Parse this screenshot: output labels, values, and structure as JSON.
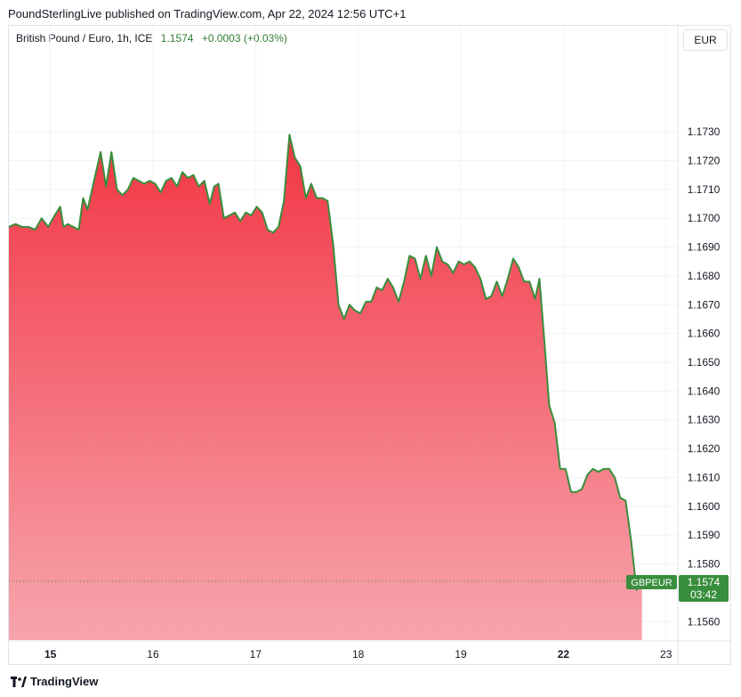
{
  "caption": "PoundSterlingLive published on TradingView.com, Apr 22, 2024 12:56 UTC+1",
  "legend": {
    "symbol": "British Pound / Euro, 1h, ICE",
    "last": "1.1574",
    "change": "+0.0003 (+0.03%)"
  },
  "currency_label": "EUR",
  "brand": "TradingView",
  "colors": {
    "line": "#388e3c",
    "fill_top": "#f23645",
    "fill_bottom": "#f7a5ad",
    "badge": "#388e3c",
    "grid": "#f0f3fa"
  },
  "chart_data": {
    "type": "area",
    "title": "British Pound / Euro, 1h, ICE",
    "series": [
      {
        "name": "GBPEUR",
        "points": [
          [
            0.0,
            1.1697
          ],
          [
            0.3,
            1.1698
          ],
          [
            0.6,
            1.1697
          ],
          [
            0.9,
            1.1697
          ],
          [
            1.2,
            1.1696
          ],
          [
            1.5,
            1.17
          ],
          [
            1.8,
            1.1697
          ],
          [
            2.1,
            1.1701
          ],
          [
            2.35,
            1.1704
          ],
          [
            2.5,
            1.1697
          ],
          [
            2.7,
            1.1698
          ],
          [
            2.95,
            1.1697
          ],
          [
            3.2,
            1.1696
          ],
          [
            3.4,
            1.1707
          ],
          [
            3.6,
            1.1703
          ],
          [
            3.9,
            1.1713
          ],
          [
            4.2,
            1.1723
          ],
          [
            4.45,
            1.1711
          ],
          [
            4.7,
            1.1723
          ],
          [
            4.95,
            1.171
          ],
          [
            5.2,
            1.1708
          ],
          [
            5.45,
            1.171
          ],
          [
            5.7,
            1.1714
          ],
          [
            5.95,
            1.1713
          ],
          [
            6.2,
            1.1712
          ],
          [
            6.45,
            1.1713
          ],
          [
            6.7,
            1.1712
          ],
          [
            6.95,
            1.1709
          ],
          [
            7.2,
            1.1713
          ],
          [
            7.45,
            1.1714
          ],
          [
            7.7,
            1.1711
          ],
          [
            7.95,
            1.1716
          ],
          [
            8.2,
            1.1714
          ],
          [
            8.45,
            1.1715
          ],
          [
            8.7,
            1.1711
          ],
          [
            8.95,
            1.1713
          ],
          [
            9.2,
            1.1705
          ],
          [
            9.4,
            1.1711
          ],
          [
            9.6,
            1.1712
          ],
          [
            9.85,
            1.17
          ],
          [
            10.1,
            1.1701
          ],
          [
            10.35,
            1.1702
          ],
          [
            10.6,
            1.1699
          ],
          [
            10.85,
            1.1702
          ],
          [
            11.1,
            1.1701
          ],
          [
            11.35,
            1.1704
          ],
          [
            11.6,
            1.1702
          ],
          [
            11.85,
            1.1696
          ],
          [
            12.1,
            1.1695
          ],
          [
            12.35,
            1.1697
          ],
          [
            12.6,
            1.1706
          ],
          [
            12.85,
            1.1729
          ],
          [
            13.1,
            1.1721
          ],
          [
            13.35,
            1.1718
          ],
          [
            13.6,
            1.1707
          ],
          [
            13.85,
            1.1712
          ],
          [
            14.1,
            1.1707
          ],
          [
            14.35,
            1.1707
          ],
          [
            14.6,
            1.1706
          ],
          [
            14.85,
            1.1691
          ],
          [
            15.1,
            1.167
          ],
          [
            15.35,
            1.1665
          ],
          [
            15.6,
            1.167
          ],
          [
            15.85,
            1.1668
          ],
          [
            16.1,
            1.1667
          ],
          [
            16.35,
            1.1671
          ],
          [
            16.6,
            1.1671
          ],
          [
            16.85,
            1.1676
          ],
          [
            17.1,
            1.1675
          ],
          [
            17.35,
            1.1679
          ],
          [
            17.6,
            1.1676
          ],
          [
            17.85,
            1.1671
          ],
          [
            18.1,
            1.1678
          ],
          [
            18.35,
            1.1687
          ],
          [
            18.6,
            1.1686
          ],
          [
            18.85,
            1.1679
          ],
          [
            19.1,
            1.1687
          ],
          [
            19.35,
            1.168
          ],
          [
            19.6,
            1.169
          ],
          [
            19.85,
            1.1685
          ],
          [
            20.1,
            1.1684
          ],
          [
            20.35,
            1.1681
          ],
          [
            20.6,
            1.1685
          ],
          [
            20.85,
            1.1684
          ],
          [
            21.1,
            1.1685
          ],
          [
            21.35,
            1.1683
          ],
          [
            21.6,
            1.1679
          ],
          [
            21.85,
            1.1672
          ],
          [
            22.1,
            1.1673
          ],
          [
            22.35,
            1.1678
          ],
          [
            22.6,
            1.1673
          ],
          [
            22.85,
            1.1679
          ],
          [
            23.1,
            1.1686
          ],
          [
            23.35,
            1.1683
          ],
          [
            23.6,
            1.1678
          ],
          [
            23.85,
            1.1678
          ],
          [
            24.1,
            1.1672
          ],
          [
            24.3,
            1.1679
          ],
          [
            24.5,
            1.166
          ],
          [
            24.75,
            1.1635
          ],
          [
            25.0,
            1.1629
          ],
          [
            25.25,
            1.1613
          ],
          [
            25.5,
            1.1613
          ],
          [
            25.75,
            1.1605
          ],
          [
            26.0,
            1.1605
          ],
          [
            26.25,
            1.1606
          ],
          [
            26.5,
            1.1611
          ],
          [
            26.75,
            1.1613
          ],
          [
            27.0,
            1.1612
          ],
          [
            27.25,
            1.1613
          ],
          [
            27.5,
            1.1613
          ],
          [
            27.75,
            1.161
          ],
          [
            28.0,
            1.1603
          ],
          [
            28.25,
            1.1602
          ],
          [
            28.5,
            1.1588
          ],
          [
            28.75,
            1.1571
          ],
          [
            29.0,
            1.1574
          ]
        ]
      }
    ],
    "x_ticks": [
      {
        "label": "15",
        "x": 1.9,
        "bold": true
      },
      {
        "label": "16",
        "x": 6.6,
        "bold": false
      },
      {
        "label": "17",
        "x": 11.3,
        "bold": false
      },
      {
        "label": "18",
        "x": 16.0,
        "bold": false
      },
      {
        "label": "19",
        "x": 20.7,
        "bold": false
      },
      {
        "label": "22",
        "x": 25.4,
        "bold": true
      },
      {
        "label": "23",
        "x": 30.1,
        "bold": false
      }
    ],
    "xlim": [
      0,
      30.6
    ],
    "y_ticks": [
      "1.1730",
      "1.1720",
      "1.1710",
      "1.1700",
      "1.1690",
      "1.1680",
      "1.1670",
      "1.1660",
      "1.1650",
      "1.1640",
      "1.1630",
      "1.1620",
      "1.1610",
      "1.1600",
      "1.1590",
      "1.1580",
      "1.1560"
    ],
    "ylim": [
      1.15536,
      1.17668
    ],
    "last_price": {
      "value": 1.1574,
      "label": "1.1574",
      "countdown": "03:42",
      "symbol_badge": "GBPEUR"
    },
    "grid": true
  }
}
